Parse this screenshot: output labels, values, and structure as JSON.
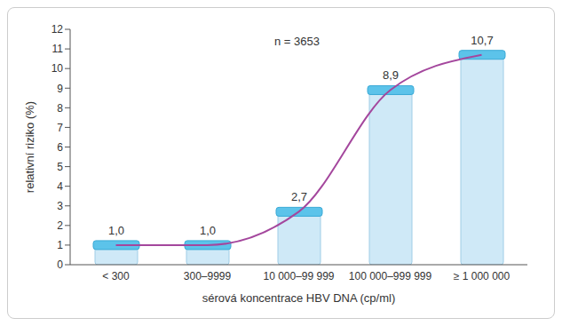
{
  "chart_data": {
    "type": "bar",
    "annotation": "n = 3653",
    "y_label": "relativní riziko (%)",
    "x_label": "sérová koncentrace HBV DNA (cp/ml)",
    "categories": [
      "< 300",
      "300–9999",
      "10 000–99 999",
      "100 000–999 999",
      "≥ 1 000 000"
    ],
    "values": [
      1.0,
      1.0,
      2.7,
      8.9,
      10.7
    ],
    "value_labels": [
      "1,0",
      "1,0",
      "2,7",
      "8,9",
      "10,7"
    ],
    "data_labels": true,
    "color": "#cfe9f7",
    "ylim": [
      0,
      12
    ],
    "yticks": [
      0,
      1,
      2,
      3,
      4,
      5,
      6,
      7,
      8,
      9,
      10,
      11,
      12
    ],
    "grid": false
  }
}
